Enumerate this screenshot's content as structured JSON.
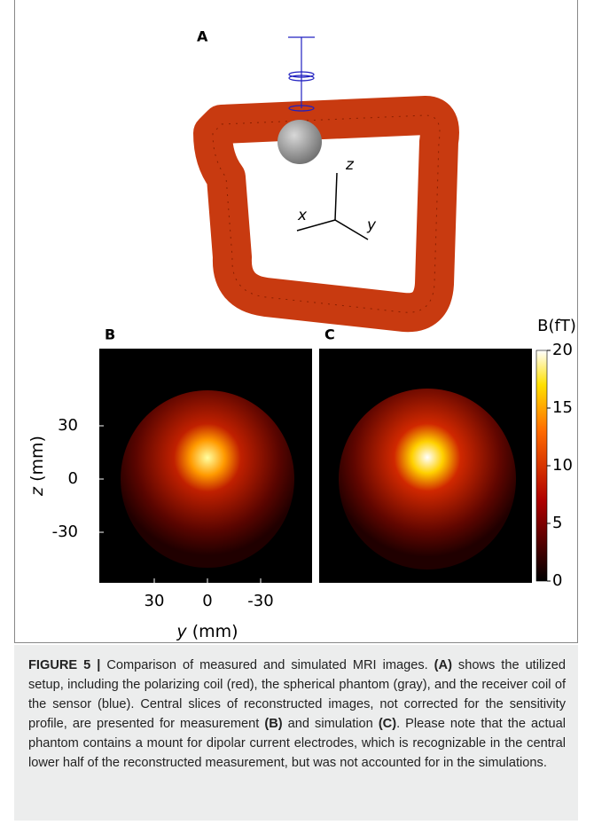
{
  "panel_a": {
    "label": "A",
    "axis_labels": [
      "z",
      "x",
      "y"
    ]
  },
  "panel_b": {
    "label": "B"
  },
  "panel_c": {
    "label": "C"
  },
  "axes": {
    "ylabel_var": "z",
    "ylabel_unit": "(mm)",
    "xlabel_var": "y",
    "xlabel_unit": "(mm)",
    "ylim": [
      -58.5,
      73.5
    ],
    "yticks": [
      30,
      0,
      -30
    ],
    "xlim": [
      61,
      -59
    ],
    "xticks": [
      30,
      0,
      -30
    ]
  },
  "colorbar": {
    "label": "B(fT)",
    "lim": [
      0,
      20
    ],
    "ticks": [
      0,
      5,
      10,
      15,
      20
    ]
  },
  "caption": [
    {
      "text": "FIGURE 5 |",
      "bold": true
    },
    {
      "text": " Comparison of measured and simulated MRI images. ",
      "bold": false
    },
    {
      "text": "(A)",
      "bold": true
    },
    {
      "text": " shows the utilized setup, including the polarizing coil (red), the spherical phantom (gray), and the receiver coil of the sensor (blue). Central slices of reconstructed images, not corrected for the sensitivity profile, are presented for measurement ",
      "bold": false
    },
    {
      "text": "(B)",
      "bold": true
    },
    {
      "text": " and simulation ",
      "bold": false
    },
    {
      "text": "(C)",
      "bold": true
    },
    {
      "text": ". Please note that the actual phantom contains a mount for dipolar current electrodes, which is recognizable in the central lower half of the reconstructed measurement, but was not accounted for in the simulations.",
      "bold": false
    }
  ]
}
